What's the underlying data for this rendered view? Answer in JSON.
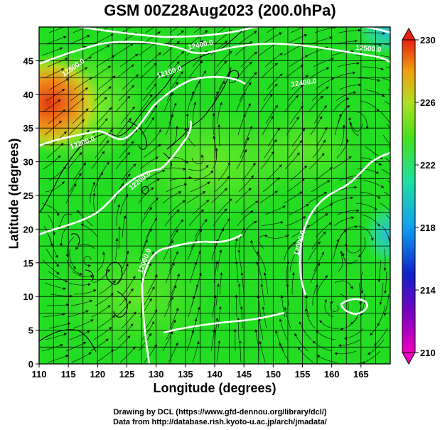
{
  "title": "GSM 00Z28Aug2023 (200.0hPa)",
  "axes": {
    "xlabel": "Longitude (degrees)",
    "ylabel": "Latitude  (degrees)",
    "xticks": [
      "110",
      "115",
      "120",
      "125",
      "130",
      "135",
      "140",
      "145",
      "150",
      "155",
      "160",
      "165"
    ],
    "yticks": [
      "0",
      "5",
      "10",
      "15",
      "20",
      "25",
      "30",
      "35",
      "40",
      "45"
    ],
    "xlim": [
      110,
      170
    ],
    "ylim": [
      0,
      50
    ]
  },
  "colorbar": {
    "ticks": [
      "230",
      "226",
      "222",
      "218",
      "214",
      "210"
    ],
    "range": [
      210,
      230
    ]
  },
  "contour_labels": [
    "12200.0",
    "12200.0",
    "12100.0",
    "12000.0",
    "12000.0",
    "12500.0",
    "12500.0",
    "12400.0",
    "12400.0"
  ],
  "credits": {
    "line1": "Drawing by DCL (https://www.gfd-dennou.org/library/dcl/)",
    "line2": "Data from http://database.rish.kyoto-u.ac.jp/arch/jmadata/"
  },
  "colors": {
    "field_main": "#22dd22",
    "field_warm": "#e85a18",
    "field_cool": "#30c8c8",
    "contour": "#ffffff",
    "grid": "#000000"
  }
}
